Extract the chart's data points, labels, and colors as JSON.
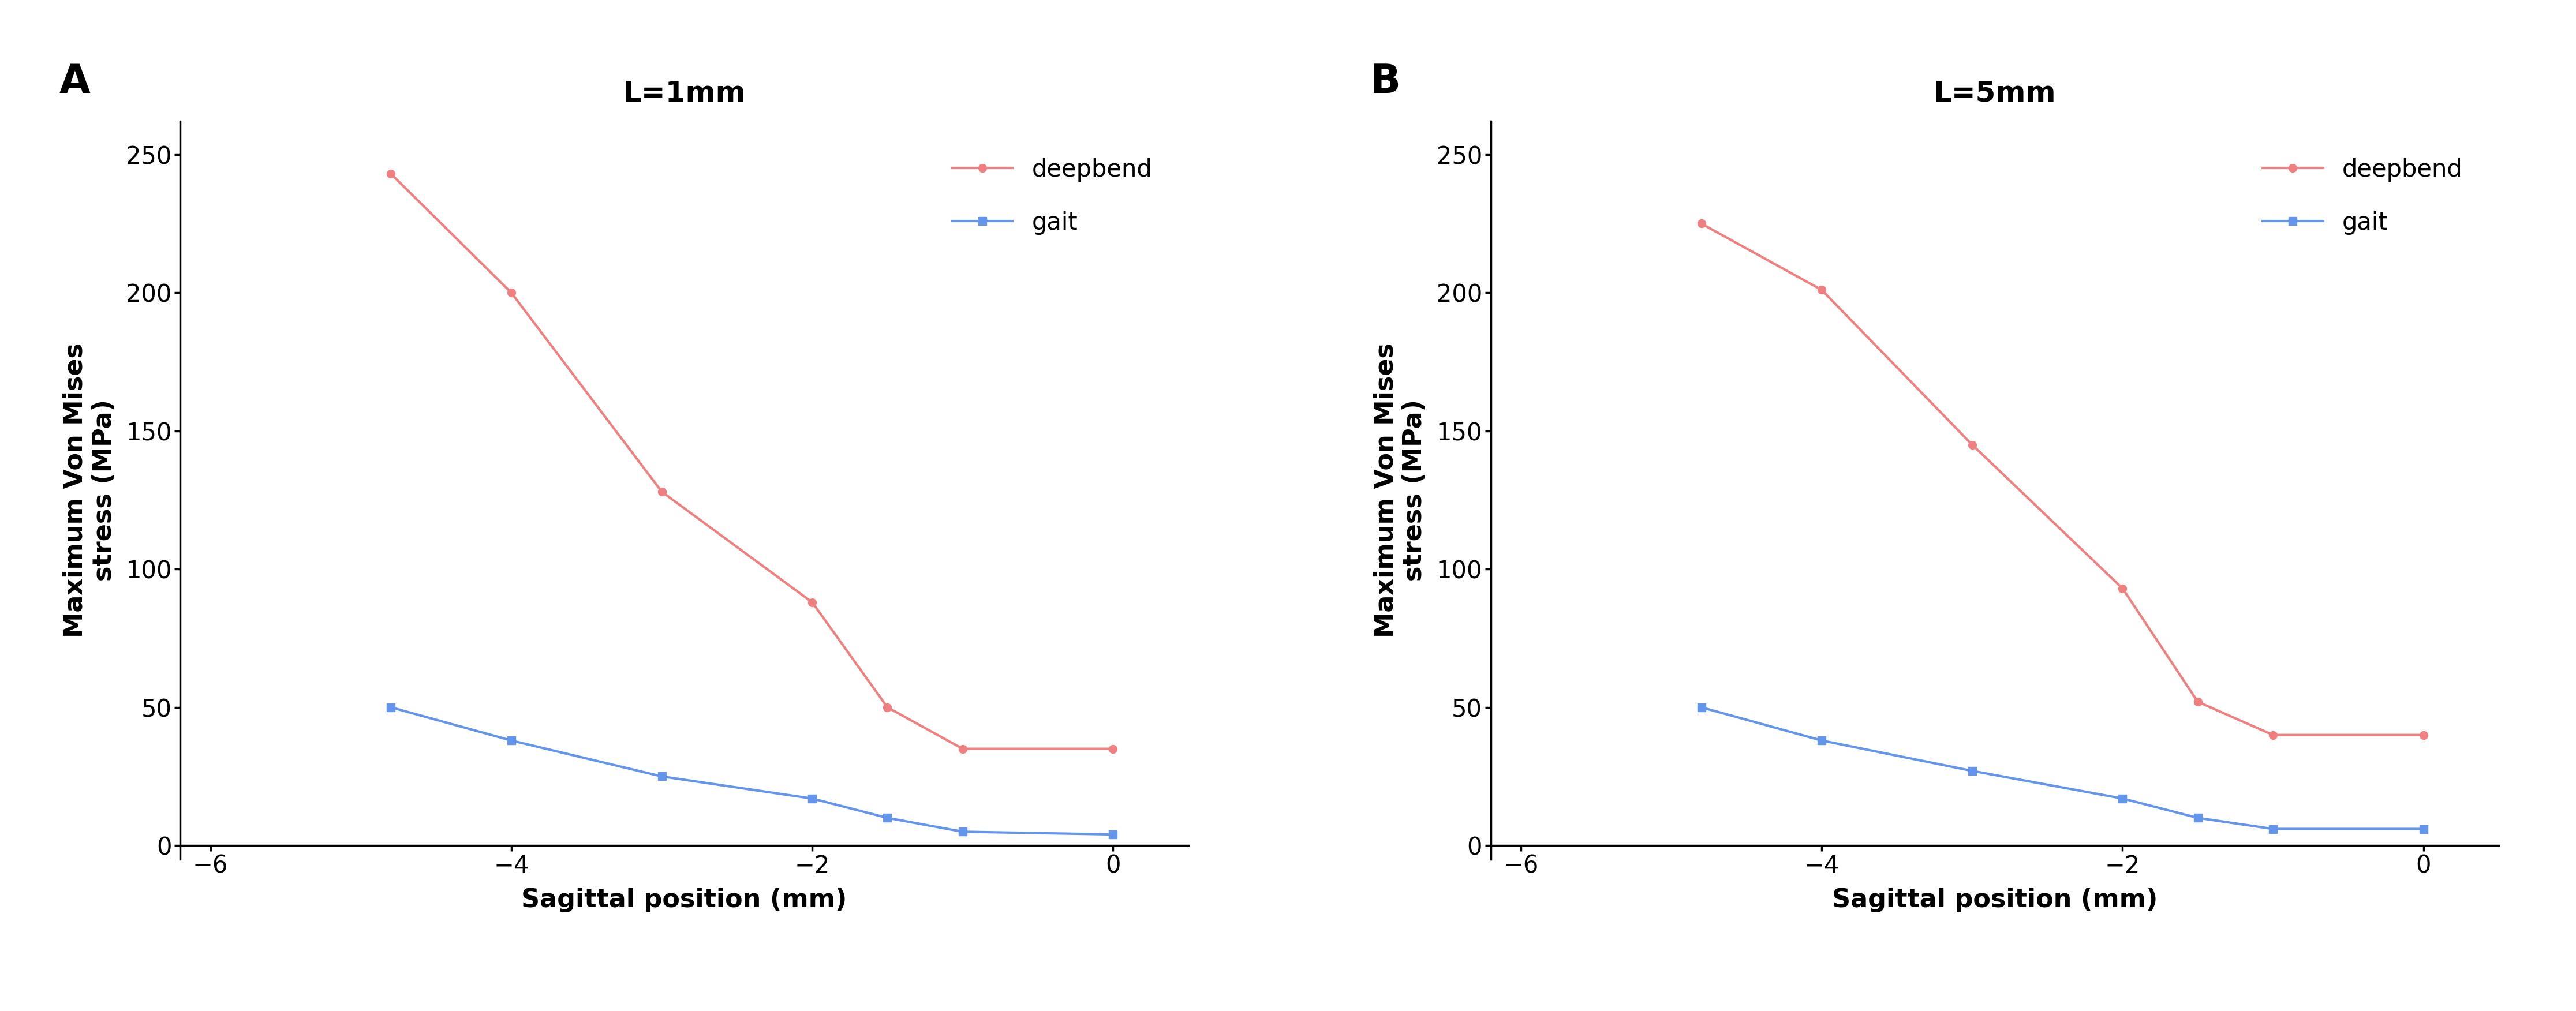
{
  "panel_A": {
    "title": "L=1mm",
    "label": "A",
    "deepbend_x": [
      -4.8,
      -4,
      -3,
      -2,
      -1.5,
      -1,
      0
    ],
    "deepbend_y": [
      243,
      200,
      128,
      88,
      50,
      35,
      35
    ],
    "gait_x": [
      -4.8,
      -4,
      -3,
      -2,
      -1.5,
      -1,
      0
    ],
    "gait_y": [
      50,
      38,
      25,
      17,
      10,
      5,
      4
    ]
  },
  "panel_B": {
    "title": "L=5mm",
    "label": "B",
    "deepbend_x": [
      -4.8,
      -4,
      -3,
      -2,
      -1.5,
      -1,
      0
    ],
    "deepbend_y": [
      225,
      201,
      145,
      93,
      52,
      40,
      40
    ],
    "gait_x": [
      -4.8,
      -4,
      -3,
      -2,
      -1.5,
      -1,
      0
    ],
    "gait_y": [
      50,
      38,
      27,
      17,
      10,
      6,
      6
    ]
  },
  "deepbend_color": "#F08080",
  "gait_color": "#6495ED",
  "xlabel": "Sagittal position (mm)",
  "ylabel_line1": "Maximum Von Mises",
  "ylabel_line2": "stress (MPa)",
  "xlim": [
    -6.2,
    0.5
  ],
  "ylim": [
    -5,
    262
  ],
  "yticks": [
    0,
    50,
    100,
    150,
    200,
    250
  ],
  "xticks": [
    -6,
    -4,
    -2,
    0
  ],
  "legend_deepbend": "deepbend",
  "legend_gait": "gait",
  "marker_deepbend": "o",
  "marker_gait": "s",
  "linewidth": 3.0,
  "markersize": 10,
  "axis_label_fontsize": 32,
  "tick_fontsize": 30,
  "title_fontsize": 36,
  "legend_fontsize": 30,
  "panel_label_fontsize": 50,
  "background_color": "#ffffff"
}
